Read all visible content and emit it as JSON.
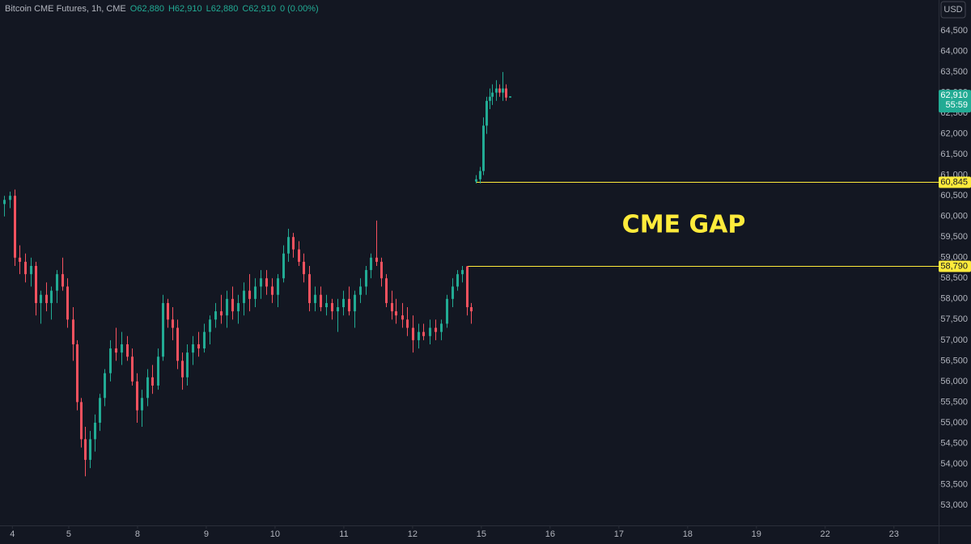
{
  "chart_data": {
    "type": "candlestick",
    "header": {
      "symbol": "Bitcoin CME Futures, 1h, CME",
      "ohlc": [
        "O62,880",
        "H62,910",
        "L62,880",
        "C62,910",
        "0 (0.00%)"
      ]
    },
    "currency": "USD",
    "annotation": "CME GAP",
    "up_color": "#22ab94",
    "down_color": "#f7525f",
    "x": [
      0.06,
      0.14,
      0.21,
      0.28,
      0.36,
      0.45,
      0.52,
      0.59,
      0.67,
      0.74,
      0.82,
      0.91,
      0.98,
      1.06,
      1.12,
      1.18,
      1.24,
      1.31,
      1.38,
      1.45,
      1.52,
      1.6,
      1.68,
      1.76,
      1.85,
      1.92,
      1.99,
      2.06,
      2.14,
      2.21,
      2.29,
      2.36,
      2.44,
      2.51,
      2.58,
      2.65,
      2.72,
      2.8,
      2.88,
      2.96,
      3.05,
      3.13,
      3.21,
      3.29,
      3.38,
      3.46,
      3.54,
      3.62,
      3.71,
      3.79,
      3.87,
      3.95,
      4.04,
      4.12,
      4.19,
      4.26,
      4.34,
      4.41,
      4.49,
      4.58,
      4.66,
      4.74,
      4.82,
      4.91,
      4.99,
      5.07,
      5.15,
      5.24,
      5.32,
      5.39,
      5.47,
      5.54,
      5.61,
      5.69,
      5.76,
      5.85,
      5.92,
      6,
      6.08,
      6.16,
      6.25,
      6.33,
      6.41,
      6.49,
      6.58,
      6.65,
      6.72,
      6.79,
      6.85,
      6.92,
      6.98,
      7.02,
      7.07,
      7.12,
      7.16,
      7.21,
      7.26,
      7.31,
      7.35,
      7.41
    ],
    "open": [
      60300,
      60400,
      60500,
      59000,
      58900,
      58600,
      58800,
      57900,
      58100,
      57900,
      58200,
      58600,
      58300,
      57500,
      56900,
      55500,
      54600,
      54100,
      54600,
      55000,
      55600,
      56200,
      56800,
      56700,
      56900,
      56600,
      56000,
      55300,
      55600,
      56100,
      55900,
      56600,
      57900,
      57500,
      57300,
      56500,
      56100,
      56700,
      56900,
      56800,
      57200,
      57500,
      57700,
      57600,
      58000,
      57700,
      57900,
      58200,
      58000,
      58300,
      58500,
      58300,
      58100,
      58500,
      59100,
      59500,
      59200,
      58900,
      58600,
      57900,
      58100,
      57800,
      57900,
      57700,
      57800,
      58000,
      57700,
      58100,
      58300,
      58700,
      59000,
      58900,
      58500,
      57900,
      57700,
      57600,
      57500,
      57300,
      57000,
      57200,
      57100,
      57300,
      57200,
      57400,
      58000,
      58300,
      58600,
      58790,
      57800,
      60845,
      60900,
      61100,
      62200,
      62800,
      62900,
      63000,
      63100,
      63000,
      63100,
      62880
    ],
    "high": [
      60500,
      60600,
      60650,
      59300,
      59100,
      59000,
      58900,
      58200,
      58400,
      58300,
      58700,
      59000,
      58500,
      57800,
      57000,
      55600,
      54900,
      54800,
      55200,
      55700,
      56300,
      57000,
      57300,
      57200,
      57100,
      56800,
      56200,
      55800,
      56300,
      56400,
      56800,
      58100,
      58000,
      57800,
      57500,
      56700,
      56900,
      57100,
      57200,
      57400,
      57600,
      57900,
      58100,
      58200,
      58300,
      58100,
      58400,
      58600,
      58500,
      58700,
      58700,
      58500,
      58600,
      59300,
      59700,
      59600,
      59400,
      59100,
      58800,
      58300,
      58300,
      58100,
      58000,
      58000,
      58200,
      58300,
      58200,
      58500,
      58800,
      59100,
      59900,
      59000,
      58600,
      58200,
      58000,
      57900,
      57800,
      57600,
      57400,
      57400,
      57500,
      57500,
      57500,
      58100,
      58500,
      58700,
      58800,
      58800,
      57900,
      61000,
      61200,
      62400,
      62900,
      63100,
      63200,
      63300,
      63200,
      63500,
      63200,
      62910
    ],
    "low": [
      60000,
      60200,
      58800,
      58600,
      58400,
      58300,
      57600,
      57400,
      57700,
      57500,
      57900,
      58200,
      57300,
      56500,
      55300,
      54400,
      53700,
      53900,
      54300,
      54800,
      55400,
      56000,
      56500,
      56400,
      56500,
      55900,
      55000,
      54900,
      55400,
      55700,
      55800,
      56500,
      57300,
      57000,
      56300,
      55800,
      55900,
      56400,
      56600,
      56700,
      56900,
      57300,
      57400,
      57300,
      57500,
      57400,
      57600,
      57700,
      57800,
      58000,
      58100,
      57900,
      57800,
      58400,
      58900,
      59000,
      58800,
      58400,
      57700,
      57700,
      57700,
      57600,
      57500,
      57200,
      57600,
      57600,
      57300,
      57900,
      58100,
      58500,
      58800,
      58300,
      57800,
      57500,
      57400,
      57300,
      57100,
      56700,
      56800,
      57000,
      56900,
      57000,
      57000,
      57300,
      57800,
      58200,
      58400,
      57600,
      57400,
      60800,
      60800,
      61000,
      62000,
      62600,
      62700,
      62800,
      62900,
      62800,
      62800,
      62880
    ],
    "close": [
      60400,
      60500,
      59000,
      58900,
      58600,
      58800,
      57900,
      58100,
      57900,
      58200,
      58600,
      58300,
      57500,
      56900,
      55500,
      54600,
      54100,
      54600,
      55000,
      55600,
      56200,
      56800,
      56700,
      56900,
      56600,
      56000,
      55300,
      55600,
      56100,
      55900,
      56600,
      57900,
      57500,
      57300,
      56500,
      56100,
      56700,
      56900,
      56800,
      57200,
      57500,
      57700,
      57600,
      58000,
      57700,
      57900,
      58200,
      58000,
      58300,
      58500,
      58300,
      58100,
      58500,
      59100,
      59500,
      59200,
      58900,
      58600,
      57900,
      58100,
      57800,
      57900,
      57700,
      57800,
      58000,
      57700,
      58100,
      58300,
      58700,
      59000,
      58900,
      58500,
      57900,
      57700,
      57600,
      57500,
      57300,
      57000,
      57200,
      57100,
      57300,
      57200,
      57400,
      58000,
      58300,
      58600,
      58700,
      57800,
      57700,
      60900,
      61100,
      62200,
      62800,
      62900,
      63000,
      63100,
      63000,
      63100,
      62880,
      62910
    ],
    "last_price": {
      "value": 62910,
      "label": "62,910",
      "countdown": "55:59"
    },
    "levels": [
      {
        "value": 60845,
        "label": "60,845",
        "x_start": 6.92,
        "color": "#ffeb3b"
      },
      {
        "value": 58790,
        "label": "58,790",
        "x_start": 6.79,
        "color": "#ffeb3b"
      }
    ],
    "xlim": [
      0,
      13.65
    ],
    "xticks": [
      {
        "value": 0.18,
        "label": "4"
      },
      {
        "value": 1,
        "label": "5"
      },
      {
        "value": 2,
        "label": "8"
      },
      {
        "value": 3,
        "label": "9"
      },
      {
        "value": 4,
        "label": "10"
      },
      {
        "value": 5,
        "label": "11"
      },
      {
        "value": 6,
        "label": "12"
      },
      {
        "value": 7,
        "label": "15"
      },
      {
        "value": 8,
        "label": "16"
      },
      {
        "value": 9,
        "label": "17"
      },
      {
        "value": 10,
        "label": "18"
      },
      {
        "value": 11,
        "label": "19"
      },
      {
        "value": 12,
        "label": "22"
      },
      {
        "value": 13,
        "label": "23"
      }
    ],
    "ylim": [
      52550,
      65245
    ],
    "yticks": [
      {
        "value": 53000,
        "label": "53,000"
      },
      {
        "value": 53500,
        "label": "53,500"
      },
      {
        "value": 54000,
        "label": "54,000"
      },
      {
        "value": 54500,
        "label": "54,500"
      },
      {
        "value": 55000,
        "label": "55,000"
      },
      {
        "value": 55500,
        "label": "55,500"
      },
      {
        "value": 56000,
        "label": "56,000"
      },
      {
        "value": 56500,
        "label": "56,500"
      },
      {
        "value": 57000,
        "label": "57,000"
      },
      {
        "value": 57500,
        "label": "57,500"
      },
      {
        "value": 58000,
        "label": "58,000"
      },
      {
        "value": 58500,
        "label": "58,500"
      },
      {
        "value": 59000,
        "label": "59,000"
      },
      {
        "value": 59500,
        "label": "59,500"
      },
      {
        "value": 60000,
        "label": "60,000"
      },
      {
        "value": 60500,
        "label": "60,500"
      },
      {
        "value": 61000,
        "label": "61,000"
      },
      {
        "value": 61500,
        "label": "61,500"
      },
      {
        "value": 62000,
        "label": "62,000"
      },
      {
        "value": 62500,
        "label": "62,500"
      },
      {
        "value": 63000,
        "label": "63,000"
      },
      {
        "value": 63500,
        "label": "63,500"
      },
      {
        "value": 64000,
        "label": "64,000"
      },
      {
        "value": 64500,
        "label": "64,500"
      }
    ],
    "grid": false
  }
}
